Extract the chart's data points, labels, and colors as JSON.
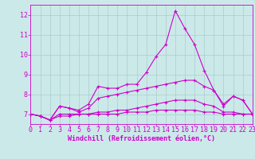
{
  "xlabel": "Windchill (Refroidissement éolien,°C)",
  "bg_color": "#cce9e9",
  "line_color": "#cc00cc",
  "grid_color": "#aacccc",
  "x": [
    0,
    1,
    2,
    3,
    4,
    5,
    6,
    7,
    8,
    9,
    10,
    11,
    12,
    13,
    14,
    15,
    16,
    17,
    18,
    19,
    20,
    21,
    22,
    23
  ],
  "lines": [
    [
      7.0,
      6.9,
      6.7,
      7.4,
      7.3,
      7.2,
      7.5,
      8.4,
      8.3,
      8.3,
      8.5,
      8.5,
      9.1,
      9.9,
      10.5,
      12.2,
      11.3,
      10.5,
      9.2,
      8.2,
      7.4,
      7.9,
      7.7,
      7.0
    ],
    [
      7.0,
      6.9,
      6.7,
      7.4,
      7.3,
      7.1,
      7.3,
      7.8,
      7.9,
      8.0,
      8.1,
      8.2,
      8.3,
      8.4,
      8.5,
      8.6,
      8.7,
      8.7,
      8.4,
      8.2,
      7.5,
      7.9,
      7.7,
      7.0
    ],
    [
      7.0,
      6.9,
      6.7,
      7.0,
      7.0,
      7.0,
      7.0,
      7.1,
      7.1,
      7.2,
      7.2,
      7.3,
      7.4,
      7.5,
      7.6,
      7.7,
      7.7,
      7.7,
      7.5,
      7.4,
      7.1,
      7.1,
      7.0,
      7.0
    ],
    [
      7.0,
      6.9,
      6.7,
      6.9,
      6.9,
      7.0,
      7.0,
      7.0,
      7.0,
      7.0,
      7.1,
      7.1,
      7.1,
      7.2,
      7.2,
      7.2,
      7.2,
      7.2,
      7.1,
      7.1,
      7.0,
      7.0,
      7.0,
      7.0
    ]
  ],
  "xlim": [
    0,
    23
  ],
  "ylim": [
    6.5,
    12.5
  ],
  "yticks": [
    7,
    8,
    9,
    10,
    11,
    12
  ],
  "xticks": [
    0,
    1,
    2,
    3,
    4,
    5,
    6,
    7,
    8,
    9,
    10,
    11,
    12,
    13,
    14,
    15,
    16,
    17,
    18,
    19,
    20,
    21,
    22,
    23
  ],
  "tick_fontsize": 6.0,
  "xlabel_fontsize": 6.0,
  "marker_size": 3.0,
  "linewidth": 0.8
}
